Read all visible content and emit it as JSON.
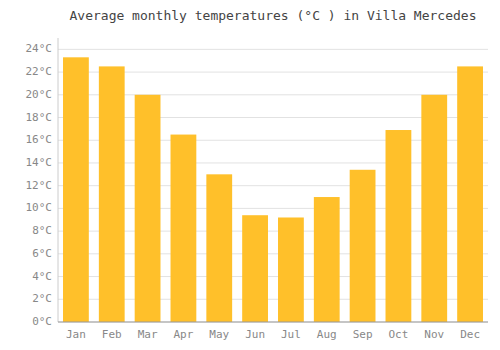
{
  "chart_data": {
    "type": "bar",
    "title": "Average monthly temperatures (°C ) in Villa Mercedes",
    "categories": [
      "Jan",
      "Feb",
      "Mar",
      "Apr",
      "May",
      "Jun",
      "Jul",
      "Aug",
      "Sep",
      "Oct",
      "Nov",
      "Dec"
    ],
    "values": [
      23.3,
      22.5,
      20.0,
      16.5,
      13.0,
      9.4,
      9.2,
      11.0,
      13.4,
      16.9,
      20.0,
      22.5
    ],
    "color": "#FFC02A",
    "ylim": [
      0,
      25
    ],
    "yticks": [
      {
        "value": 0,
        "label": "0°C"
      },
      {
        "value": 2,
        "label": "2°C"
      },
      {
        "value": 4,
        "label": "4°C"
      },
      {
        "value": 6,
        "label": "6°C"
      },
      {
        "value": 8,
        "label": "8°C"
      },
      {
        "value": 10,
        "label": "10°C"
      },
      {
        "value": 12,
        "label": "12°C"
      },
      {
        "value": 14,
        "label": "14°C"
      },
      {
        "value": 16,
        "label": "16°C"
      },
      {
        "value": 18,
        "label": "18°C"
      },
      {
        "value": 20,
        "label": "20°C"
      },
      {
        "value": 22,
        "label": "22°C"
      },
      {
        "value": 24,
        "label": "24°C"
      }
    ],
    "grid": true
  }
}
